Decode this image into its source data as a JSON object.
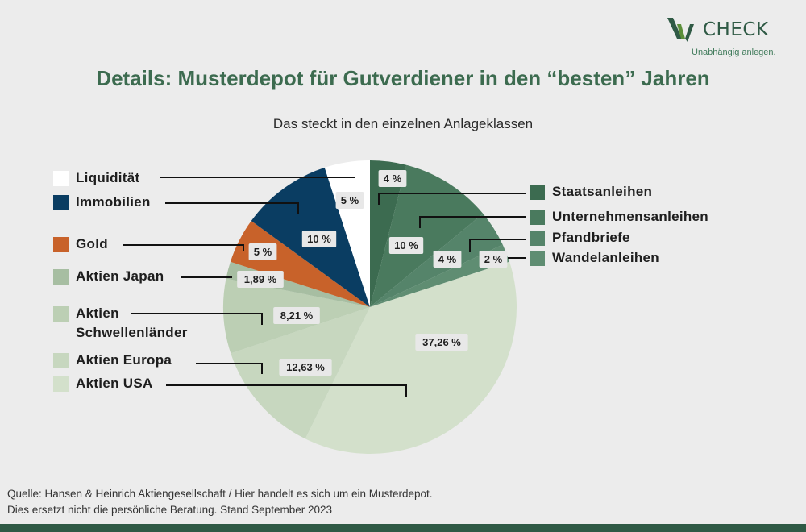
{
  "logo": {
    "text": "CHECK",
    "tagline": "Unabhängig anlegen."
  },
  "header": {
    "title": "Details: Musterdepot für Gutverdiener in den “besten” Jahren",
    "subtitle": "Das steckt in den einzelnen Anlageklassen"
  },
  "colors": {
    "staatsanleihen": "#3c6b50",
    "unternehmensanleihen": "#4a7a5e",
    "pfandbriefe": "#55846a",
    "wandelanleihen": "#5f8d72",
    "aktien_usa": "#d3e0cb",
    "aktien_europa": "#c7d7bf",
    "aktien_schwellenlaender": "#bccfb4",
    "aktien_japan": "#a7bea2",
    "gold": "#c8622a",
    "immobilien": "#0a3d62",
    "liquiditaet": "#ffffff"
  },
  "chart_data": {
    "type": "pie",
    "slices": [
      {
        "name": "Staatsanleihen",
        "value": 4,
        "label": "4 %"
      },
      {
        "name": "Unternehmensanleihen",
        "value": 10,
        "label": "10 %"
      },
      {
        "name": "Pfandbriefe",
        "value": 4,
        "label": "4 %"
      },
      {
        "name": "Wandelanleihen",
        "value": 2,
        "label": "2 %"
      },
      {
        "name": "Aktien USA",
        "value": 37.26,
        "label": "37,26 %"
      },
      {
        "name": "Aktien Europa",
        "value": 12.63,
        "label": "12,63 %"
      },
      {
        "name": "Aktien Schwellenländer",
        "value": 8.21,
        "label": "8,21 %"
      },
      {
        "name": "Aktien Japan",
        "value": 1.89,
        "label": "1,89 %"
      },
      {
        "name": "Gold",
        "value": 5,
        "label": "5 %"
      },
      {
        "name": "Immobilien",
        "value": 10,
        "label": "10 %"
      },
      {
        "name": "Liquidität",
        "value": 5,
        "label": "5 %"
      }
    ]
  },
  "legend": {
    "left": [
      {
        "label": "Liquidität"
      },
      {
        "label": "Immobilien"
      },
      {
        "label": "Gold"
      },
      {
        "label": "Aktien Japan"
      },
      {
        "label": "Aktien Schwellenländer"
      },
      {
        "label": "Aktien Europa"
      },
      {
        "label": "Aktien USA"
      }
    ],
    "right": [
      {
        "label": "Staatsanleihen"
      },
      {
        "label": "Unternehmensanleihen"
      },
      {
        "label": "Pfandbriefe"
      },
      {
        "label": "Wandelanleihen"
      }
    ]
  },
  "footer": {
    "line1": "Quelle: Hansen & Heinrich Aktiengesellschaft  / Hier handelt es sich um ein Musterdepot.",
    "line2": "Dies ersetzt nicht die persönliche Beratung. Stand September 2023"
  }
}
